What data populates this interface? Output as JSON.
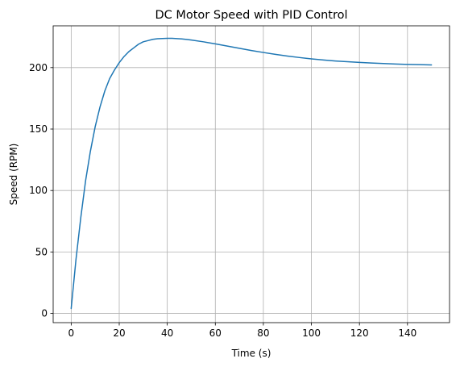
{
  "chart_data": {
    "type": "line",
    "title": "DC Motor Speed with PID Control",
    "xlabel": "Time (s)",
    "ylabel": "Speed (RPM)",
    "xlim": [
      -7.5,
      157.5
    ],
    "ylim": [
      -7.5,
      234
    ],
    "xticks": [
      0,
      20,
      40,
      60,
      80,
      100,
      120,
      140
    ],
    "yticks": [
      0,
      50,
      100,
      150,
      200
    ],
    "grid": true,
    "colors": {
      "line": "#1f77b4",
      "grid": "#b0b0b0",
      "axes": "#000000"
    },
    "series": [
      {
        "x": [
          0,
          2,
          4,
          6,
          8,
          10,
          12,
          14,
          16,
          18,
          20,
          22,
          24,
          26,
          28,
          30,
          32,
          34,
          36,
          38,
          40,
          42,
          44,
          46,
          48,
          50,
          55,
          60,
          65,
          70,
          75,
          80,
          85,
          90,
          95,
          100,
          105,
          110,
          115,
          120,
          125,
          130,
          135,
          140,
          145,
          150
        ],
        "values": [
          4,
          44,
          78,
          108,
          132,
          152,
          168,
          181,
          191,
          198,
          204,
          209,
          213,
          216,
          219,
          221,
          222,
          223,
          223.5,
          223.7,
          223.8,
          223.8,
          223.6,
          223.3,
          222.9,
          222.4,
          221,
          219.3,
          217.5,
          215.7,
          213.9,
          212.3,
          210.8,
          209.4,
          208.2,
          207.1,
          206.2,
          205.4,
          204.8,
          204.2,
          203.7,
          203.3,
          202.9,
          202.6,
          202.4,
          202.2
        ]
      }
    ]
  }
}
